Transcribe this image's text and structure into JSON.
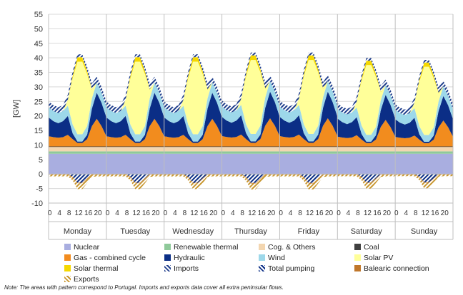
{
  "chart_data": {
    "type": "area",
    "ylabel": "[GW]",
    "ylim": [
      -10,
      55
    ],
    "yticks": [
      -10,
      -5,
      0,
      5,
      10,
      15,
      20,
      25,
      30,
      35,
      40,
      45,
      50,
      55
    ],
    "grid": true,
    "legend_position": "bottom",
    "days": [
      "Monday",
      "Tuesday",
      "Wednesday",
      "Thursday",
      "Friday",
      "Saturday",
      "Sunday"
    ],
    "hour_ticks": [
      "0",
      "4",
      "8",
      "12",
      "16",
      "20"
    ],
    "x_hours": [
      0,
      2,
      4,
      6,
      8,
      10,
      12,
      14,
      16,
      18,
      20,
      22
    ],
    "stacked": true,
    "series_positive": [
      {
        "name": "Nuclear",
        "color": "#a9aee0",
        "pattern": "none",
        "values": [
          7,
          7,
          7,
          7,
          7,
          7,
          7,
          7,
          7,
          7,
          7,
          7
        ]
      },
      {
        "name": "Renewable thermal",
        "color": "#8fc99a",
        "pattern": "none",
        "values": [
          0.8,
          0.8,
          0.8,
          0.8,
          0.8,
          0.8,
          0.8,
          0.8,
          0.8,
          0.8,
          0.8,
          0.8
        ]
      },
      {
        "name": "Cog. & Others",
        "color": "#f3d6b0",
        "pattern": "none",
        "values": [
          1.5,
          1.5,
          1.5,
          1.5,
          1.5,
          1.5,
          1.5,
          1.5,
          1.5,
          1.5,
          1.5,
          1.5
        ]
      },
      {
        "name": "Coal",
        "color": "#404040",
        "pattern": "none",
        "values": [
          0.2,
          0.2,
          0.2,
          0.2,
          0.2,
          0.2,
          0.2,
          0.2,
          0.2,
          0.2,
          0.2,
          0.2
        ]
      },
      {
        "name": "Gas - combined cycle",
        "color": "#f28c1e",
        "pattern": "none",
        "values": [
          3.5,
          3.2,
          3.0,
          3.2,
          4.0,
          2.5,
          1.2,
          1.2,
          2.5,
          7.0,
          9.5,
          7.0
        ]
      },
      {
        "name": "Hydraulic",
        "color": "#0b2e86",
        "pattern": "none",
        "values": [
          6.5,
          5.5,
          5.0,
          5.5,
          6.5,
          2.0,
          0.5,
          0.5,
          1.5,
          6.0,
          9.0,
          8.0
        ]
      },
      {
        "name": "Wind",
        "color": "#9dd8ea",
        "pattern": "none",
        "values": [
          3.5,
          3.5,
          3.5,
          3.5,
          3.5,
          3.0,
          2.5,
          2.5,
          3.0,
          3.5,
          3.5,
          3.5
        ]
      },
      {
        "name": "Solar PV",
        "color": "#ffff99",
        "pattern": "none",
        "values": [
          0,
          0,
          0,
          0,
          2.0,
          16.0,
          25.0,
          25.0,
          18.0,
          3.0,
          0,
          0
        ]
      },
      {
        "name": "Solar thermal",
        "color": "#f5d800",
        "pattern": "none",
        "values": [
          0,
          0,
          0,
          0,
          0.1,
          0.8,
          1.5,
          1.5,
          1.0,
          0.2,
          0,
          0
        ]
      },
      {
        "name": "Imports",
        "color": "#1f3e8c",
        "pattern": "hatch",
        "values": [
          2.0,
          2.0,
          2.0,
          2.0,
          1.8,
          1.5,
          1.0,
          1.0,
          1.5,
          2.0,
          2.0,
          2.0
        ]
      }
    ],
    "series_negative": [
      {
        "name": "Total pumping",
        "color": "#0b2e86",
        "pattern": "hatch",
        "values": [
          0,
          0,
          0,
          0,
          0,
          -1.0,
          -3.0,
          -3.0,
          -1.5,
          0,
          0,
          0
        ]
      },
      {
        "name": "Balearic connection",
        "color": "#c0772b",
        "pattern": "none",
        "values": [
          -0.2,
          -0.2,
          -0.2,
          -0.2,
          -0.2,
          -0.2,
          -0.2,
          -0.2,
          -0.2,
          -0.2,
          -0.2,
          -0.2
        ]
      },
      {
        "name": "Exports",
        "color": "#c8962e",
        "pattern": "hatch",
        "values": [
          -0.6,
          -0.6,
          -0.6,
          -0.6,
          -0.6,
          -1.0,
          -2.0,
          -2.0,
          -1.5,
          -0.8,
          -0.6,
          -0.6
        ]
      }
    ],
    "day_scale": [
      1.0,
      1.0,
      1.0,
      1.02,
      1.02,
      0.96,
      0.94
    ],
    "legend": [
      "Nuclear",
      "Renewable thermal",
      "Cog. & Others",
      "Coal",
      "Gas - combined cycle",
      "Hydraulic",
      "Wind",
      "Solar PV",
      "Solar thermal",
      "Imports",
      "Total pumping",
      "Balearic connection",
      "Exports"
    ]
  },
  "note": "Note: The areas with pattern correspond to Portugal. Imports and exports data cover all extra peninsular flows."
}
